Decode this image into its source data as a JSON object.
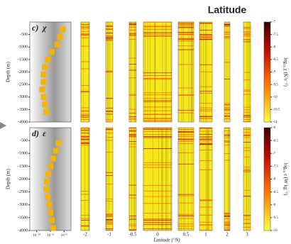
{
  "title": "Latitude",
  "chart_data": [
    {
      "type": "profile",
      "panel_label": "c)",
      "symbol": "χ",
      "ylabel": "Depth (m)",
      "ylim": [
        -4000,
        0
      ],
      "yticks": [
        -500,
        -1000,
        -1500,
        -2000,
        -2500,
        -3000,
        -3500,
        -4000
      ],
      "xlim": [
        -11,
        -5
      ],
      "profile": {
        "x": [
          -6.2,
          -6.6,
          -7.0,
          -7.8,
          -8.4,
          -8.8,
          -9.0,
          -9.0,
          -9.2,
          -9.0,
          -8.8,
          -8.6
        ],
        "y": [
          -300,
          -600,
          -900,
          -1200,
          -1500,
          -1800,
          -2100,
          -2400,
          -2700,
          -3000,
          -3300,
          -3600
        ]
      },
      "colorbar": {
        "label": "log₁₀ χ (K²s⁻¹)",
        "lim": [
          -11,
          -7
        ],
        "ticks": [
          -7,
          -7.5,
          -8,
          -8.5,
          -9,
          -9.5,
          -10,
          -10.5,
          -11
        ]
      }
    },
    {
      "type": "profile",
      "panel_label": "d)",
      "symbol": "ε",
      "ylabel": "Depth (m)",
      "ylim": [
        -4000,
        0
      ],
      "yticks": [
        -500,
        -1000,
        -1500,
        -2000,
        -2500,
        -3000,
        -3500,
        -4000
      ],
      "xlim": [
        -11,
        -5
      ],
      "xticks": [
        {
          "value": -10,
          "label": "10⁻¹⁰"
        },
        {
          "value": -8,
          "label": "10⁻⁸"
        },
        {
          "value": -6,
          "label": "10⁻⁶"
        }
      ],
      "profile": {
        "x": [
          -6.8,
          -7.2,
          -7.6,
          -8.0,
          -8.3,
          -8.5,
          -8.6,
          -8.4,
          -8.2,
          -8.0,
          -7.8,
          -7.6
        ],
        "y": [
          -600,
          -900,
          -1200,
          -1500,
          -1800,
          -2100,
          -2400,
          -2700,
          -3000,
          -3300,
          -3600,
          -3900
        ]
      },
      "colorbar": {
        "label": "log₁₀ ε (W kg⁻¹)",
        "lim": [
          -10,
          -6
        ],
        "ticks": [
          -6,
          -6.5,
          -7,
          -7.5,
          -8,
          -8.5,
          -9,
          -9.5,
          -10
        ]
      },
      "xlabel": "Latitude (°N)",
      "categories": [
        "-2",
        "-1",
        "-0.5",
        "0",
        "0.5",
        "1",
        "2",
        "3"
      ]
    }
  ]
}
